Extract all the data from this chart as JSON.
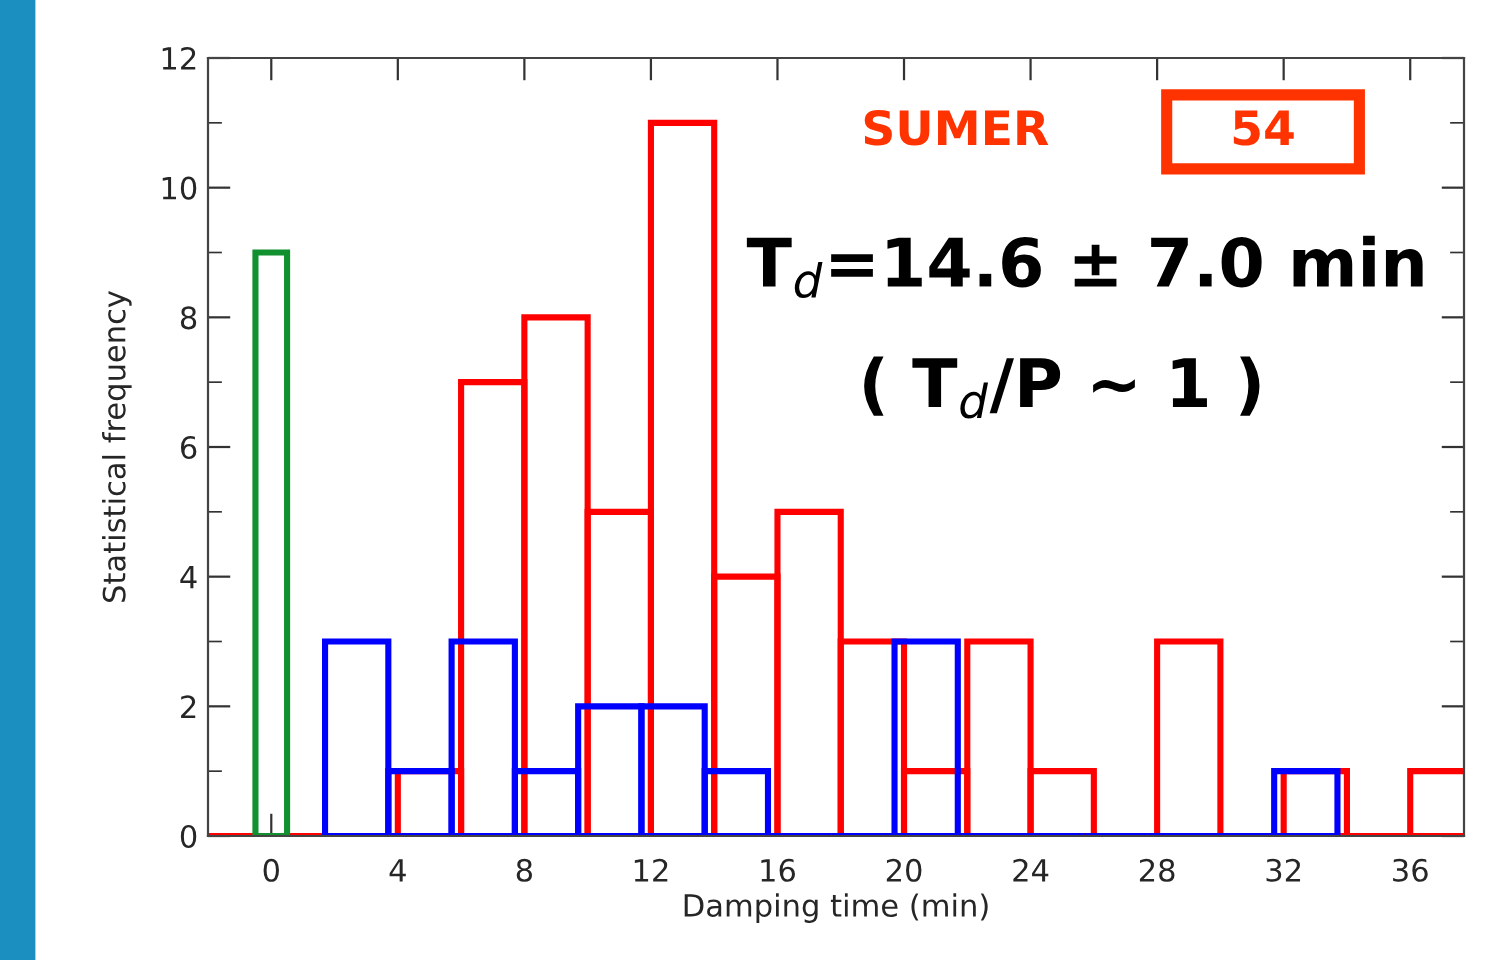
{
  "chart_data": {
    "type": "histogram",
    "xlabel": "Damping time (min)",
    "ylabel": "Statistical frequency",
    "xlim": [
      -2,
      37.7
    ],
    "xticks": [
      0,
      4,
      8,
      12,
      16,
      20,
      24,
      28,
      32,
      36
    ],
    "ylim": [
      0,
      12
    ],
    "yticks": [
      0,
      2,
      4,
      6,
      8,
      10,
      12
    ],
    "bins": [
      -2,
      0,
      2,
      4,
      6,
      8,
      10,
      12,
      14,
      16,
      18,
      20,
      22,
      24,
      26,
      28,
      30,
      32,
      34,
      36,
      38
    ],
    "series": [
      {
        "color": "#ff0000",
        "values": [
          0,
          0,
          0,
          1,
          7,
          8,
          5,
          11,
          4,
          5,
          3,
          1,
          3,
          1,
          0,
          3,
          0,
          1,
          0,
          1
        ]
      },
      {
        "type": "bar",
        "color": "#0000ff",
        "x": [
          2.7,
          4.7,
          6.7,
          8.7,
          10.7,
          12.7,
          14.7,
          16.7,
          18.7,
          20.7,
          22.7,
          24.7,
          26.7,
          28.7,
          30.7,
          32.7
        ],
        "values": [
          3,
          1,
          3,
          1,
          2,
          2,
          1,
          0,
          0,
          3,
          0,
          0,
          0,
          0,
          0,
          1
        ]
      },
      {
        "type": "bar",
        "color": "#119030",
        "x": [
          0
        ],
        "values": [
          9
        ]
      }
    ],
    "annotations": [
      "SUMER",
      "54",
      "T$_{d}$=14.6 ± 7.0 min",
      "( T$_{d}$/P ~ 1 )"
    ]
  }
}
